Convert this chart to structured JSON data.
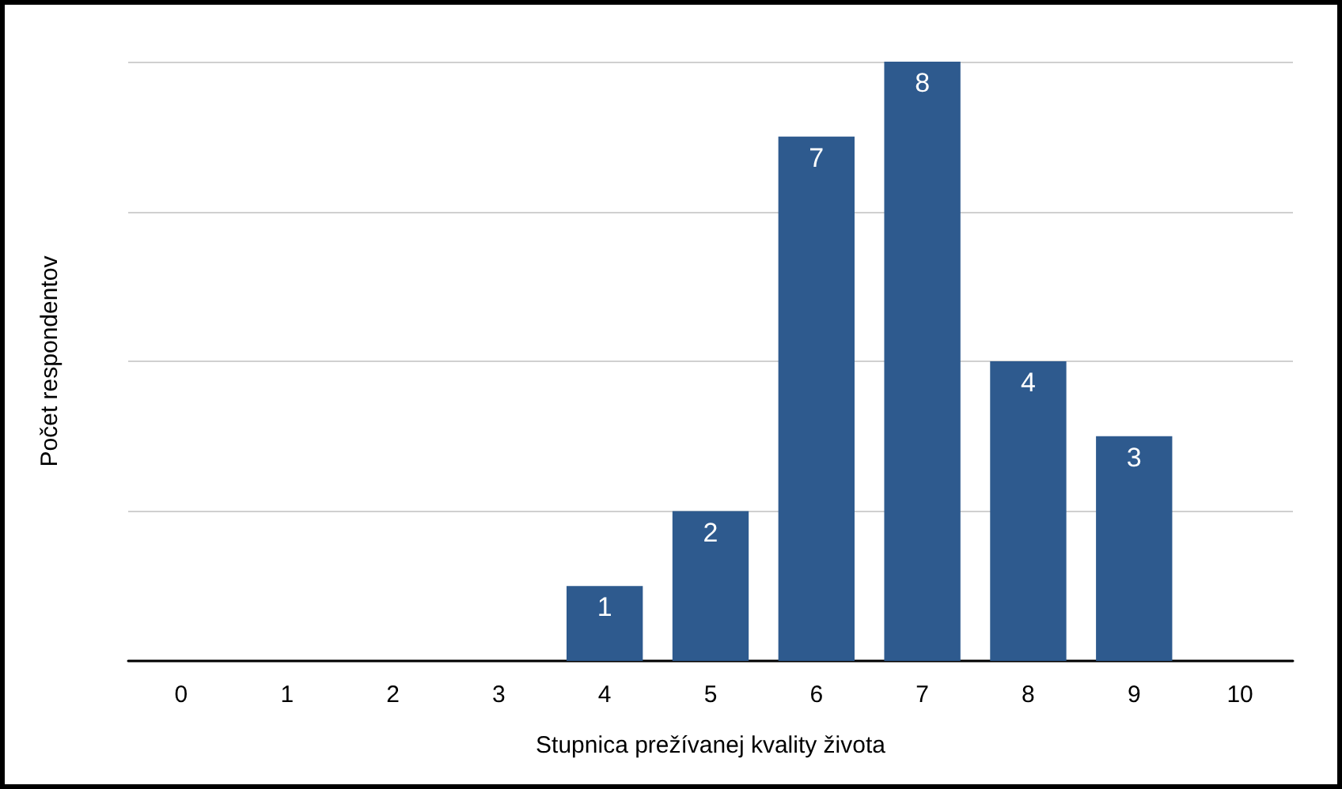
{
  "chart_data": {
    "type": "bar",
    "xlabel": "Stupnica prežívanej kvality života",
    "ylabel": "Počet respondentov",
    "categories": [
      "0",
      "1",
      "2",
      "3",
      "4",
      "5",
      "6",
      "7",
      "8",
      "9",
      "10"
    ],
    "values": [
      0,
      0,
      0,
      0,
      1,
      2,
      7,
      8,
      4,
      3,
      0
    ],
    "value_labels": [
      null,
      null,
      null,
      null,
      "1",
      "2",
      "7",
      "8",
      "4",
      "3",
      null
    ],
    "color": "#2e5a8e",
    "ylim": [
      0,
      8
    ],
    "yticks": [
      {
        "value": 0,
        "label": null
      },
      {
        "value": 2,
        "label": null
      },
      {
        "value": 4,
        "label": null
      },
      {
        "value": 6,
        "label": null
      },
      {
        "value": 8,
        "label": null
      }
    ],
    "tick_labels": "x",
    "grid": "y"
  }
}
